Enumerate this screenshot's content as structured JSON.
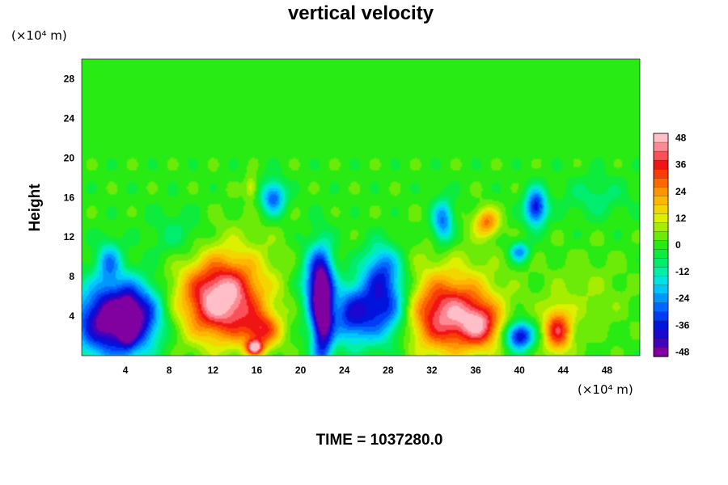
{
  "chart_data": {
    "type": "heatmap",
    "title": "vertical velocity",
    "ylabel": "Height",
    "xlabel": "",
    "x_unit": "(×10⁴ m)",
    "y_unit": "(×10⁴ m)",
    "xlim": [
      0,
      51
    ],
    "ylim": [
      0,
      30
    ],
    "x_ticks": [
      4,
      8,
      12,
      16,
      20,
      24,
      28,
      32,
      36,
      40,
      44,
      48
    ],
    "y_ticks": [
      4,
      8,
      12,
      16,
      20,
      24,
      28
    ],
    "colorbar": {
      "min": -48,
      "max": 48,
      "step": 4,
      "tick_labels": [
        48,
        36,
        24,
        12,
        0,
        -12,
        -24,
        -36,
        -48
      ]
    },
    "features": [
      {
        "x": 2.0,
        "y": 3.5,
        "sx": 2.0,
        "sy": 2.6,
        "value": -44
      },
      {
        "x": 5.0,
        "y": 4.0,
        "sx": 1.7,
        "sy": 2.4,
        "value": -40
      },
      {
        "x": 4.2,
        "y": 3.2,
        "sx": 0.5,
        "sy": 2.2,
        "value": -14
      },
      {
        "x": 2.5,
        "y": 9.5,
        "sx": 0.8,
        "sy": 1.5,
        "value": -22
      },
      {
        "x": 12.8,
        "y": 5.5,
        "sx": 2.5,
        "sy": 2.8,
        "value": 48
      },
      {
        "x": 16.5,
        "y": 2.5,
        "sx": 1.2,
        "sy": 1.3,
        "value": 28
      },
      {
        "x": 15.8,
        "y": 0.8,
        "sx": 0.5,
        "sy": 0.5,
        "value": 40
      },
      {
        "x": 22.0,
        "y": 4.0,
        "sx": 0.7,
        "sy": 3.8,
        "value": -48
      },
      {
        "x": 21.5,
        "y": 7.5,
        "sx": 1.0,
        "sy": 2.5,
        "value": -30
      },
      {
        "x": 24.5,
        "y": 4.0,
        "sx": 1.2,
        "sy": 2.0,
        "value": -28
      },
      {
        "x": 27.5,
        "y": 5.0,
        "sx": 1.8,
        "sy": 2.5,
        "value": -40
      },
      {
        "x": 27.5,
        "y": 9.0,
        "sx": 1.2,
        "sy": 1.8,
        "value": -22
      },
      {
        "x": 33.5,
        "y": 4.0,
        "sx": 2.8,
        "sy": 2.6,
        "value": 42
      },
      {
        "x": 36.5,
        "y": 3.0,
        "sx": 1.2,
        "sy": 1.5,
        "value": 24
      },
      {
        "x": 40.0,
        "y": 2.0,
        "sx": 0.9,
        "sy": 1.0,
        "value": -42
      },
      {
        "x": 43.5,
        "y": 2.5,
        "sx": 0.9,
        "sy": 1.6,
        "value": 34
      },
      {
        "x": 17.5,
        "y": 16.0,
        "sx": 0.8,
        "sy": 1.2,
        "value": -30
      },
      {
        "x": 15.5,
        "y": 17.0,
        "sx": 0.4,
        "sy": 0.8,
        "value": 14
      },
      {
        "x": 33.0,
        "y": 13.5,
        "sx": 0.7,
        "sy": 1.6,
        "value": -28
      },
      {
        "x": 37.0,
        "y": 13.5,
        "sx": 0.8,
        "sy": 1.0,
        "value": 26
      },
      {
        "x": 41.5,
        "y": 15.0,
        "sx": 0.7,
        "sy": 1.3,
        "value": -38
      },
      {
        "x": 40.0,
        "y": 10.5,
        "sx": 0.6,
        "sy": 0.7,
        "value": -26
      },
      {
        "x": 13.0,
        "y": 9.0,
        "sx": 4.0,
        "sy": 3.5,
        "value": 8
      },
      {
        "x": 33.0,
        "y": 8.0,
        "sx": 4.0,
        "sy": 3.5,
        "value": 6
      },
      {
        "x": 9.0,
        "y": 12.0,
        "sx": 2.0,
        "sy": 2.0,
        "value": -10
      },
      {
        "x": 46.0,
        "y": 6.0,
        "sx": 3.0,
        "sy": 3.0,
        "value": 6
      },
      {
        "x": 47.0,
        "y": 16.0,
        "sx": 2.0,
        "sy": 1.5,
        "value": -8
      }
    ]
  },
  "time_label": "TIME = 1037280.0"
}
